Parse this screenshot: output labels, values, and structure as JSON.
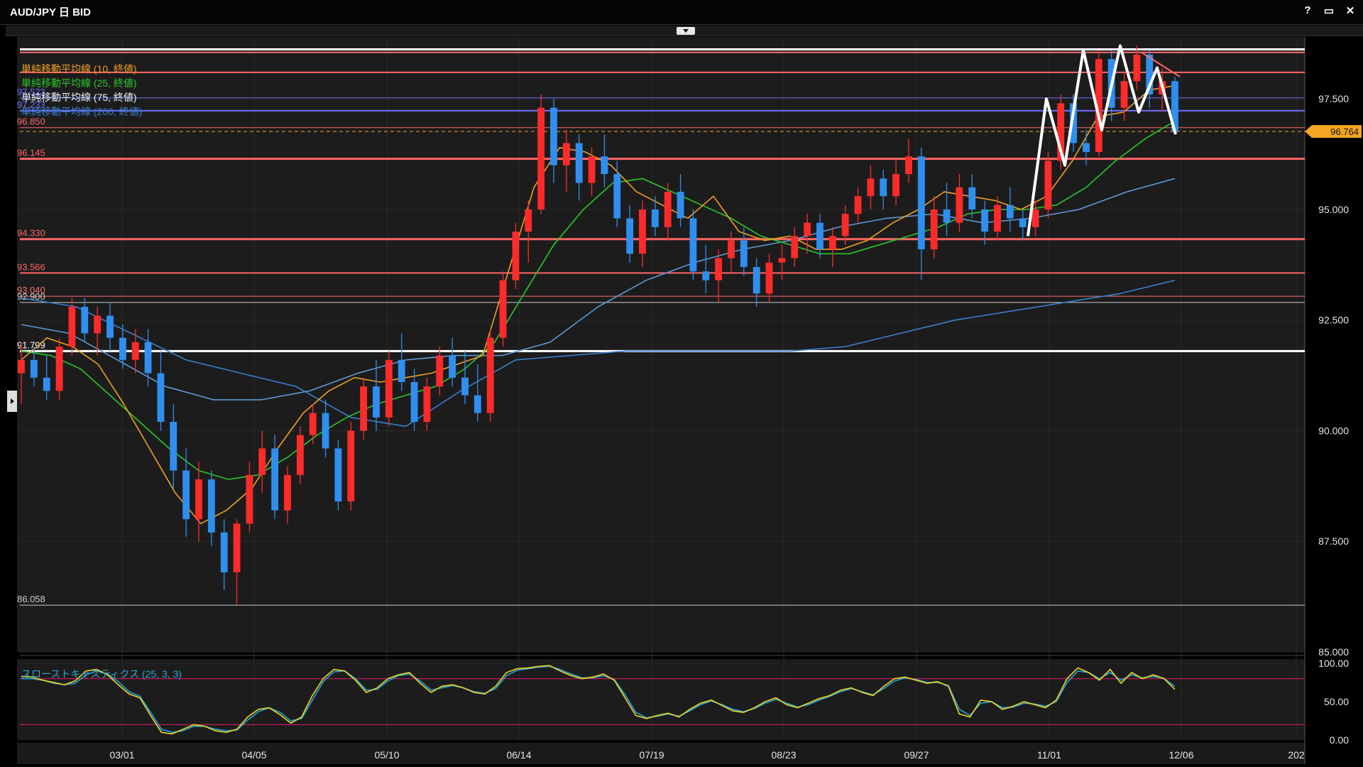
{
  "window": {
    "title": "AUD/JPY 日 BID",
    "help_label": "?",
    "restore_label": "▭",
    "close_label": "✕"
  },
  "chart_data": {
    "type": "candlestick",
    "indicators": [
      {
        "name": "単純移動平均線 (10, 終値)",
        "color": "#f0a020"
      },
      {
        "name": "単純移動平均線 (25, 終値)",
        "color": "#28c828"
      },
      {
        "name": "単純移動平均線 (75, 終値)",
        "color": "#e8f4ff"
      },
      {
        "name": "単純移動平均線 (200, 終値)",
        "color": "#3a7fd0"
      }
    ],
    "price_axis": {
      "ticks": [
        "97.500",
        "95.000",
        "92.500",
        "90.000",
        "87.500",
        "85.000"
      ],
      "range": [
        85.0,
        98.9
      ]
    },
    "x_axis_ticks": [
      "03/01",
      "04/05",
      "05/10",
      "06/14",
      "07/19",
      "08/23",
      "09/27",
      "11/01",
      "12/06",
      "202"
    ],
    "current_price": "96.764",
    "levels": [
      {
        "label": "",
        "value": 98.62,
        "color": "#ffffff",
        "width": 3
      },
      {
        "label": "",
        "value": 98.55,
        "color": "#ff7070",
        "width": 2
      },
      {
        "label": "",
        "value": 98.1,
        "color": "#ff6666",
        "width": 2
      },
      {
        "label": "97.523",
        "value": 97.523,
        "color": "#6a6aff",
        "width": 1
      },
      {
        "label": "97.233",
        "value": 97.233,
        "color": "#7070ff",
        "width": 2
      },
      {
        "label": "96.850",
        "value": 96.85,
        "color": "#ff6666",
        "width": 1
      },
      {
        "label": "96.145",
        "value": 96.145,
        "color": "#ff6666",
        "width": 3
      },
      {
        "label": "94.330",
        "value": 94.33,
        "color": "#ff6666",
        "width": 3
      },
      {
        "label": "93.566",
        "value": 93.566,
        "color": "#ff6666",
        "width": 2
      },
      {
        "label": "93.040",
        "value": 93.04,
        "color": "#ff7070",
        "width": 1
      },
      {
        "label": "92.900",
        "value": 92.9,
        "color": "#cccccc",
        "width": 1
      },
      {
        "label": "91.799",
        "value": 91.799,
        "color": "#ffffff",
        "width": 3
      },
      {
        "label": "86.058",
        "value": 86.058,
        "color": "#cccccc",
        "width": 1
      }
    ],
    "ma10": [
      91.6,
      92.1,
      91.9,
      91.5,
      90.6,
      89.6,
      88.6,
      87.9,
      88.2,
      88.7,
      89.6,
      90.4,
      90.9,
      91.2,
      91.1,
      91.2,
      91.3,
      91.5,
      91.7,
      93.6,
      95.5,
      96.4,
      96.3,
      96.0,
      95.4,
      95.1,
      94.8,
      95.3,
      94.5,
      94.3,
      94.4,
      94.1,
      94.1,
      94.3,
      94.7,
      95.0,
      95.4,
      95.3,
      95.2,
      95.0,
      95.3,
      96.1,
      97.1,
      97.2,
      97.7,
      97.8
    ],
    "ma25": [
      91.8,
      91.7,
      91.4,
      90.8,
      90.2,
      89.6,
      89.1,
      88.9,
      89.0,
      89.4,
      89.9,
      90.3,
      90.6,
      90.8,
      91.0,
      91.4,
      92.0,
      93.1,
      94.2,
      95.0,
      95.6,
      95.7,
      95.4,
      95.1,
      94.8,
      94.4,
      94.2,
      94.0,
      94.0,
      94.2,
      94.4,
      94.6,
      94.9,
      95.0,
      95.0,
      95.1,
      95.5,
      96.1,
      96.6,
      97.0
    ],
    "ma75": [
      92.4,
      92.2,
      91.6,
      91.0,
      90.7,
      90.7,
      90.9,
      91.3,
      91.6,
      91.7,
      91.7,
      92.0,
      92.8,
      93.4,
      93.8,
      94.1,
      94.3,
      94.6,
      94.8,
      94.9,
      94.7,
      94.8,
      95.0,
      95.4,
      95.7
    ],
    "ma200": [
      93.0,
      92.8,
      92.2,
      91.6,
      91.3,
      91.0,
      90.3,
      90.1,
      90.9,
      91.6,
      91.7,
      91.8,
      91.8,
      91.8,
      91.8,
      91.9,
      92.2,
      92.5,
      92.7,
      92.9,
      93.1,
      93.4
    ],
    "swing_path": [
      94.4,
      97.5,
      96.0,
      98.6,
      96.8,
      98.7,
      97.2,
      98.2,
      96.7
    ],
    "candles": [
      {
        "o": 91.3,
        "h": 92.0,
        "l": 90.6,
        "c": 91.6
      },
      {
        "o": 91.6,
        "h": 91.9,
        "l": 91.0,
        "c": 91.2
      },
      {
        "o": 91.2,
        "h": 91.7,
        "l": 90.7,
        "c": 90.9
      },
      {
        "o": 90.9,
        "h": 92.1,
        "l": 90.7,
        "c": 91.9
      },
      {
        "o": 91.9,
        "h": 93.0,
        "l": 91.7,
        "c": 92.8
      },
      {
        "o": 92.8,
        "h": 93.0,
        "l": 92.0,
        "c": 92.2
      },
      {
        "o": 92.2,
        "h": 92.8,
        "l": 91.7,
        "c": 92.6
      },
      {
        "o": 92.6,
        "h": 92.9,
        "l": 91.8,
        "c": 92.1
      },
      {
        "o": 92.1,
        "h": 92.4,
        "l": 91.4,
        "c": 91.6
      },
      {
        "o": 91.6,
        "h": 92.3,
        "l": 91.3,
        "c": 92.0
      },
      {
        "o": 92.0,
        "h": 92.3,
        "l": 91.0,
        "c": 91.3
      },
      {
        "o": 91.3,
        "h": 91.8,
        "l": 90.0,
        "c": 90.2
      },
      {
        "o": 90.2,
        "h": 90.6,
        "l": 88.7,
        "c": 89.1
      },
      {
        "o": 89.1,
        "h": 89.6,
        "l": 87.6,
        "c": 88.0
      },
      {
        "o": 88.0,
        "h": 89.3,
        "l": 87.5,
        "c": 88.9
      },
      {
        "o": 88.9,
        "h": 89.1,
        "l": 87.4,
        "c": 87.7
      },
      {
        "o": 87.7,
        "h": 88.0,
        "l": 86.4,
        "c": 86.8
      },
      {
        "o": 86.8,
        "h": 88.0,
        "l": 86.058,
        "c": 87.9
      },
      {
        "o": 87.9,
        "h": 89.3,
        "l": 87.7,
        "c": 89.0
      },
      {
        "o": 89.0,
        "h": 90.0,
        "l": 88.6,
        "c": 89.6
      },
      {
        "o": 89.6,
        "h": 89.9,
        "l": 88.0,
        "c": 88.2
      },
      {
        "o": 88.2,
        "h": 89.2,
        "l": 87.9,
        "c": 89.0
      },
      {
        "o": 89.0,
        "h": 90.1,
        "l": 88.8,
        "c": 89.9
      },
      {
        "o": 89.9,
        "h": 90.6,
        "l": 89.7,
        "c": 90.4
      },
      {
        "o": 90.4,
        "h": 90.7,
        "l": 89.4,
        "c": 89.6
      },
      {
        "o": 89.6,
        "h": 89.8,
        "l": 88.2,
        "c": 88.4
      },
      {
        "o": 88.4,
        "h": 90.2,
        "l": 88.2,
        "c": 90.0
      },
      {
        "o": 90.0,
        "h": 91.2,
        "l": 89.8,
        "c": 91.0
      },
      {
        "o": 91.0,
        "h": 91.6,
        "l": 90.0,
        "c": 90.3
      },
      {
        "o": 90.3,
        "h": 91.8,
        "l": 90.1,
        "c": 91.6
      },
      {
        "o": 91.6,
        "h": 92.2,
        "l": 90.9,
        "c": 91.1
      },
      {
        "o": 91.1,
        "h": 91.4,
        "l": 90.0,
        "c": 90.2
      },
      {
        "o": 90.2,
        "h": 91.2,
        "l": 90.0,
        "c": 91.0
      },
      {
        "o": 91.0,
        "h": 91.9,
        "l": 90.8,
        "c": 91.7
      },
      {
        "o": 91.7,
        "h": 92.1,
        "l": 91.0,
        "c": 91.2
      },
      {
        "o": 91.2,
        "h": 91.8,
        "l": 90.6,
        "c": 90.8
      },
      {
        "o": 90.8,
        "h": 91.5,
        "l": 90.2,
        "c": 90.4
      },
      {
        "o": 90.4,
        "h": 92.3,
        "l": 90.2,
        "c": 92.1
      },
      {
        "o": 92.1,
        "h": 93.6,
        "l": 91.9,
        "c": 93.4
      },
      {
        "o": 93.4,
        "h": 94.7,
        "l": 93.2,
        "c": 94.5
      },
      {
        "o": 94.5,
        "h": 95.2,
        "l": 93.8,
        "c": 95.0
      },
      {
        "o": 95.0,
        "h": 97.6,
        "l": 94.9,
        "c": 97.3
      },
      {
        "o": 97.3,
        "h": 97.5,
        "l": 95.6,
        "c": 96.0
      },
      {
        "o": 96.0,
        "h": 96.8,
        "l": 95.4,
        "c": 96.5
      },
      {
        "o": 96.5,
        "h": 96.7,
        "l": 95.2,
        "c": 95.6
      },
      {
        "o": 95.6,
        "h": 96.4,
        "l": 95.3,
        "c": 96.2
      },
      {
        "o": 96.2,
        "h": 96.7,
        "l": 95.5,
        "c": 95.8
      },
      {
        "o": 95.8,
        "h": 96.1,
        "l": 94.6,
        "c": 94.8
      },
      {
        "o": 94.8,
        "h": 95.1,
        "l": 93.8,
        "c": 94.0
      },
      {
        "o": 94.0,
        "h": 95.2,
        "l": 93.7,
        "c": 95.0
      },
      {
        "o": 95.0,
        "h": 95.3,
        "l": 94.4,
        "c": 94.6
      },
      {
        "o": 94.6,
        "h": 95.6,
        "l": 94.3,
        "c": 95.4
      },
      {
        "o": 95.4,
        "h": 95.8,
        "l": 94.6,
        "c": 94.8
      },
      {
        "o": 94.8,
        "h": 95.0,
        "l": 93.4,
        "c": 93.6
      },
      {
        "o": 93.6,
        "h": 94.2,
        "l": 93.1,
        "c": 93.4
      },
      {
        "o": 93.4,
        "h": 94.1,
        "l": 92.9,
        "c": 93.9
      },
      {
        "o": 93.9,
        "h": 94.5,
        "l": 93.6,
        "c": 94.3
      },
      {
        "o": 94.3,
        "h": 94.6,
        "l": 93.5,
        "c": 93.7
      },
      {
        "o": 93.7,
        "h": 93.9,
        "l": 92.8,
        "c": 93.1
      },
      {
        "o": 93.1,
        "h": 94.0,
        "l": 92.9,
        "c": 93.8
      },
      {
        "o": 93.8,
        "h": 94.2,
        "l": 93.4,
        "c": 93.9
      },
      {
        "o": 93.9,
        "h": 94.6,
        "l": 93.7,
        "c": 94.4
      },
      {
        "o": 94.4,
        "h": 94.9,
        "l": 94.0,
        "c": 94.7
      },
      {
        "o": 94.7,
        "h": 94.9,
        "l": 93.9,
        "c": 94.1
      },
      {
        "o": 94.1,
        "h": 94.6,
        "l": 93.7,
        "c": 94.4
      },
      {
        "o": 94.4,
        "h": 95.1,
        "l": 94.2,
        "c": 94.9
      },
      {
        "o": 94.9,
        "h": 95.5,
        "l": 94.7,
        "c": 95.3
      },
      {
        "o": 95.3,
        "h": 96.0,
        "l": 95.0,
        "c": 95.7
      },
      {
        "o": 95.7,
        "h": 95.9,
        "l": 95.0,
        "c": 95.3
      },
      {
        "o": 95.3,
        "h": 96.1,
        "l": 95.1,
        "c": 95.8
      },
      {
        "o": 95.8,
        "h": 96.6,
        "l": 95.6,
        "c": 96.2
      },
      {
        "o": 96.2,
        "h": 96.4,
        "l": 93.4,
        "c": 94.1
      },
      {
        "o": 94.1,
        "h": 95.3,
        "l": 93.9,
        "c": 95.0
      },
      {
        "o": 95.0,
        "h": 95.6,
        "l": 94.4,
        "c": 94.7
      },
      {
        "o": 94.7,
        "h": 95.8,
        "l": 94.5,
        "c": 95.5
      },
      {
        "o": 95.5,
        "h": 95.8,
        "l": 94.8,
        "c": 95.0
      },
      {
        "o": 95.0,
        "h": 95.2,
        "l": 94.2,
        "c": 94.5
      },
      {
        "o": 94.5,
        "h": 95.3,
        "l": 94.3,
        "c": 95.1
      },
      {
        "o": 95.1,
        "h": 95.5,
        "l": 94.5,
        "c": 94.8
      },
      {
        "o": 94.8,
        "h": 95.0,
        "l": 94.3,
        "c": 94.6
      },
      {
        "o": 94.6,
        "h": 95.2,
        "l": 94.4,
        "c": 95.0
      },
      {
        "o": 95.0,
        "h": 96.3,
        "l": 94.8,
        "c": 96.1
      },
      {
        "o": 96.1,
        "h": 97.6,
        "l": 95.9,
        "c": 97.4
      },
      {
        "o": 97.4,
        "h": 97.6,
        "l": 96.3,
        "c": 96.5
      },
      {
        "o": 96.5,
        "h": 96.8,
        "l": 96.0,
        "c": 96.3
      },
      {
        "o": 96.3,
        "h": 98.6,
        "l": 96.2,
        "c": 98.4
      },
      {
        "o": 98.4,
        "h": 98.6,
        "l": 97.0,
        "c": 97.3
      },
      {
        "o": 97.3,
        "h": 98.1,
        "l": 97.0,
        "c": 97.9
      },
      {
        "o": 97.9,
        "h": 98.7,
        "l": 97.7,
        "c": 98.5
      },
      {
        "o": 98.5,
        "h": 98.6,
        "l": 97.3,
        "c": 97.6
      },
      {
        "o": 97.6,
        "h": 98.2,
        "l": 97.2,
        "c": 97.9
      },
      {
        "o": 97.9,
        "h": 98.0,
        "l": 96.7,
        "c": 96.764
      }
    ],
    "stochastic": {
      "label": "スローストキャスティクス (25, 3, 3)",
      "ticks": [
        "100.00",
        "50.00",
        "0.00"
      ],
      "levels": [
        80,
        20
      ],
      "k": [
        83,
        82,
        78,
        75,
        72,
        77,
        90,
        92,
        85,
        72,
        60,
        55,
        32,
        10,
        8,
        14,
        20,
        18,
        12,
        10,
        14,
        30,
        40,
        42,
        33,
        22,
        30,
        58,
        80,
        92,
        90,
        78,
        62,
        68,
        80,
        85,
        88,
        74,
        62,
        70,
        72,
        68,
        62,
        60,
        70,
        88,
        93,
        94,
        96,
        97,
        90,
        84,
        80,
        82,
        86,
        78,
        55,
        32,
        28,
        32,
        35,
        30,
        40,
        48,
        52,
        45,
        38,
        36,
        42,
        50,
        55,
        46,
        42,
        48,
        54,
        58,
        65,
        68,
        62,
        58,
        70,
        80,
        82,
        78,
        74,
        76,
        70,
        34,
        30,
        52,
        50,
        40,
        44,
        50,
        46,
        42,
        52,
        80,
        94,
        88,
        78,
        92,
        74,
        88,
        80,
        85,
        80,
        66
      ],
      "d": [
        80,
        80,
        78,
        74,
        72,
        74,
        85,
        90,
        86,
        76,
        63,
        57,
        36,
        14,
        10,
        12,
        18,
        18,
        14,
        12,
        13,
        26,
        37,
        42,
        36,
        25,
        28,
        52,
        76,
        89,
        90,
        80,
        65,
        66,
        77,
        84,
        86,
        77,
        65,
        68,
        71,
        68,
        63,
        61,
        67,
        84,
        91,
        93,
        95,
        96,
        92,
        86,
        81,
        81,
        84,
        79,
        59,
        36,
        29,
        31,
        34,
        31,
        38,
        46,
        51,
        46,
        40,
        37,
        41,
        48,
        53,
        48,
        43,
        46,
        52,
        57,
        63,
        67,
        63,
        59,
        67,
        77,
        81,
        79,
        75,
        75,
        71,
        40,
        32,
        48,
        50,
        42,
        43,
        48,
        47,
        44,
        50,
        75,
        90,
        88,
        80,
        88,
        78,
        85,
        81,
        83,
        80,
        70
      ]
    }
  }
}
